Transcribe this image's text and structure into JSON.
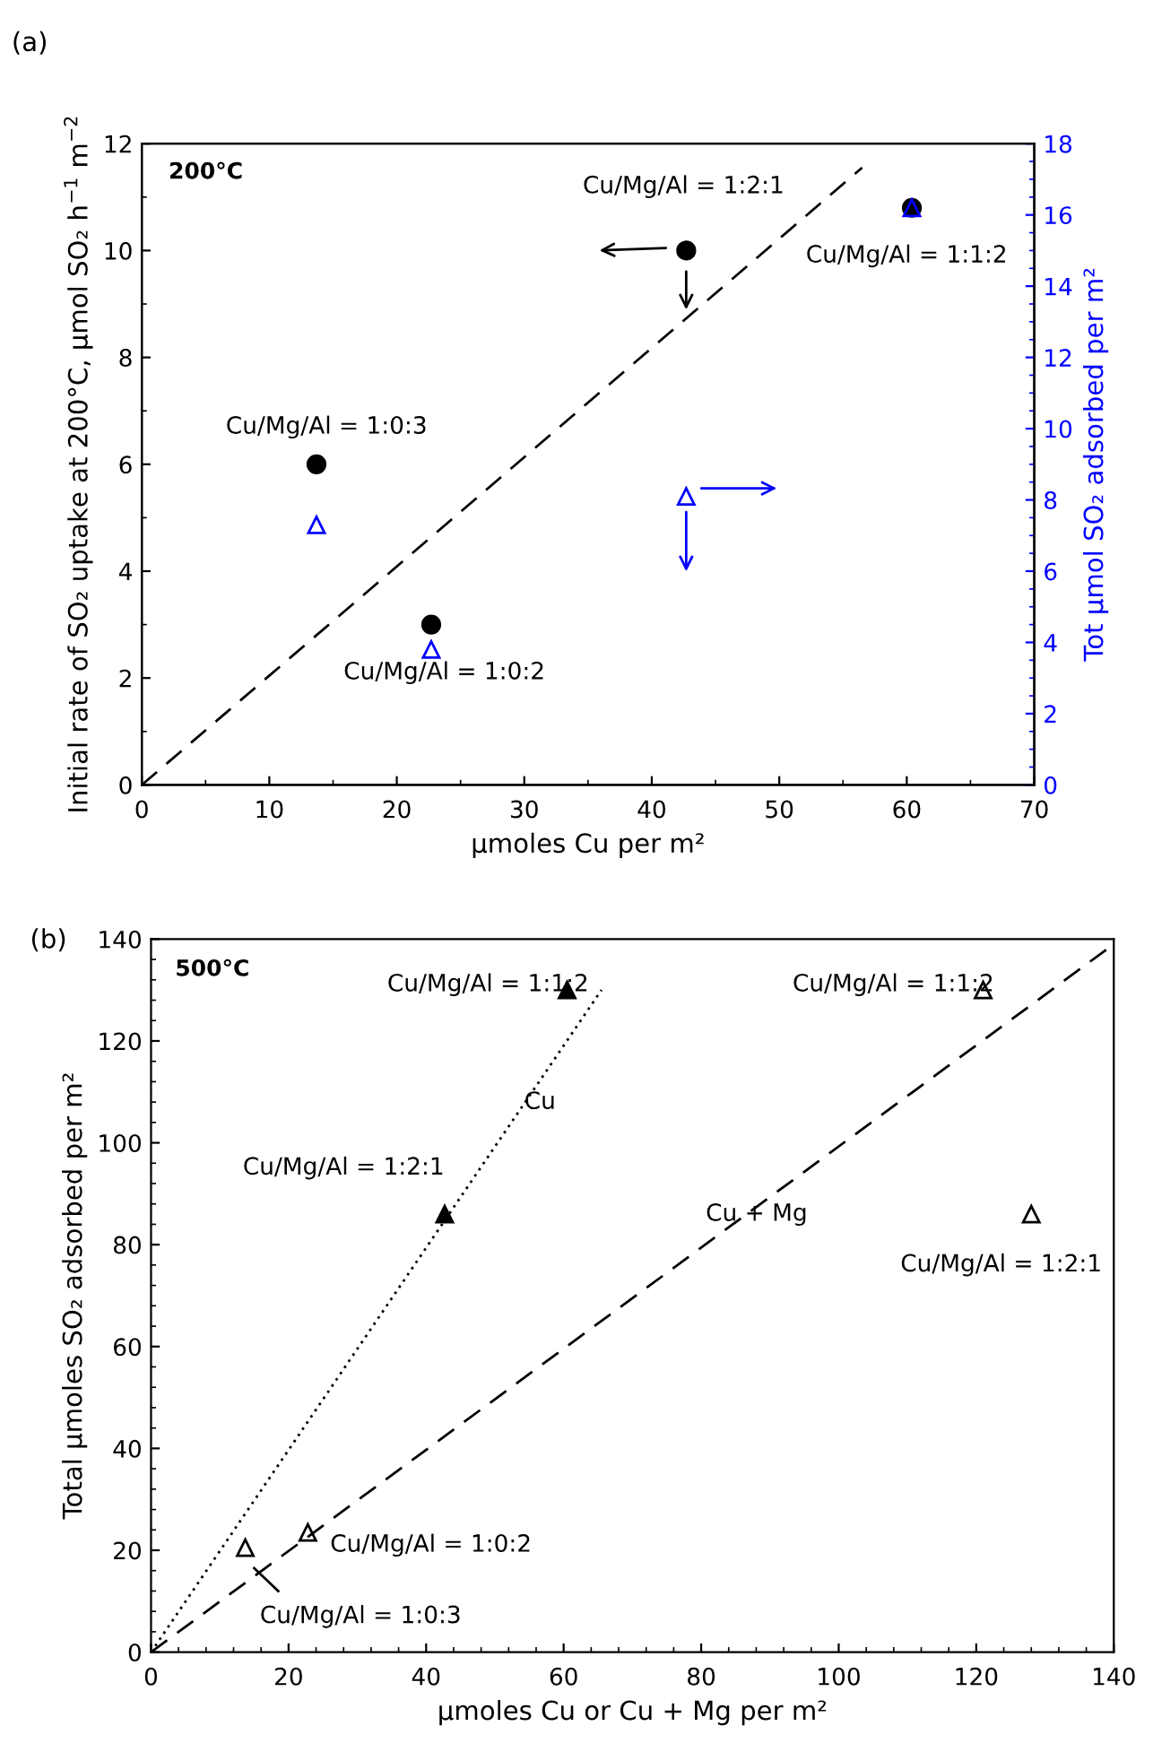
{
  "chart_data": [
    {
      "type": "scatter",
      "title": "(a)",
      "xlabel": "µmoles Cu per m²",
      "ylabel": "Initial rate of SO₂ uptake at 200°C, µmol SO₂ h$^{−1}$ m$^{−2}$",
      "y2label": "Tot µmol SO₂ adsorbed per m²",
      "xlim": [
        0,
        70
      ],
      "xticks": [
        0,
        10,
        20,
        30,
        40,
        50,
        60,
        70
      ],
      "ylim": [
        0,
        12
      ],
      "yticks": [
        0,
        2,
        4,
        6,
        8,
        10,
        12
      ],
      "y2lim": [
        0,
        18
      ],
      "y2ticks": [
        0,
        2,
        4,
        6,
        8,
        10,
        12,
        14,
        16,
        18
      ],
      "grid": false,
      "series": [
        {
          "type": "line",
          "color": "#000000",
          "line_style": "dashed",
          "marker": "none",
          "x": [
            0,
            56.5
          ],
          "values": [
            0,
            11.55
          ]
        },
        {
          "type": "scatter",
          "color": "#000000",
          "marker": "circle",
          "x": [
            13.7,
            22.7,
            42.7,
            60.4
          ],
          "values": [
            6,
            3,
            10,
            10.8
          ]
        },
        {
          "type": "scatter",
          "color": "#0000ff",
          "marker": "triangle",
          "axis": "y2",
          "x": [
            13.7,
            22.7,
            42.7,
            60.4
          ],
          "values": [
            7.3,
            3.8,
            8.1,
            16.2
          ]
        }
      ],
      "annotations": [
        "200°C",
        "Cu/Mg/Al = 1:2:1",
        "Cu/Mg/Al = 1:1:2",
        "Cu/Mg/Al = 1:0:3",
        "Cu/Mg/Al = 1:0:2"
      ]
    },
    {
      "type": "scatter",
      "title": "(b)",
      "xlabel": "µmoles Cu or Cu + Mg per m²",
      "ylabel": "Total µmoles SO₂ adsorbed per m²",
      "xlim": [
        0,
        140
      ],
      "xticks": [
        0,
        20,
        40,
        60,
        80,
        100,
        120,
        140
      ],
      "ylim": [
        0,
        140
      ],
      "yticks": [
        0,
        20,
        40,
        60,
        80,
        100,
        120,
        140
      ],
      "grid": false,
      "series": [
        {
          "type": "line",
          "color": "#000000",
          "line_style": "dotted",
          "marker": "none",
          "x": [
            0,
            65.5
          ],
          "values": [
            0,
            130
          ]
        },
        {
          "type": "line",
          "color": "#000000",
          "line_style": "dashed",
          "marker": "none",
          "x": [
            0,
            140
          ],
          "values": [
            0,
            139
          ]
        },
        {
          "type": "scatter",
          "color": "#000000",
          "marker": "triangle",
          "x": [
            42.7,
            60.5
          ],
          "values": [
            86,
            130
          ]
        },
        {
          "type": "scatter",
          "color": "#000000",
          "marker": "triangle",
          "x": [
            13.7,
            22.8,
            121,
            128
          ],
          "values": [
            20.5,
            23.5,
            130,
            86
          ]
        }
      ],
      "annotations": [
        "500°C",
        "Cu/Mg/Al = 1:1:2",
        "Cu/Mg/Al = 1:1:2",
        "Cu",
        "Cu/Mg/Al = 1:2:1",
        "Cu + Mg",
        "Cu/Mg/Al = 1:2:1",
        "Cu/Mg/Al = 1:0:2",
        "Cu/Mg/Al = 1:0:3"
      ]
    }
  ]
}
